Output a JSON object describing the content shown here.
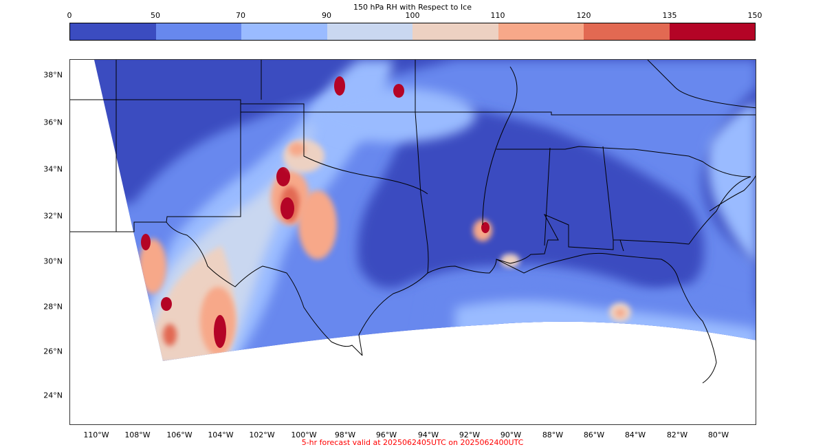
{
  "colorbar": {
    "title": "150 hPa RH with Respect to Ice",
    "ticks": [
      "0",
      "50",
      "70",
      "90",
      "100",
      "110",
      "120",
      "135",
      "150"
    ],
    "colors": [
      "#3b4cc0",
      "#6788ee",
      "#9abbff",
      "#c9d7f0",
      "#edd1c2",
      "#f7a889",
      "#e26952",
      "#b40426"
    ]
  },
  "map": {
    "lat_labels": [
      "38°N",
      "36°N",
      "34°N",
      "32°N",
      "30°N",
      "28°N",
      "26°N",
      "24°N"
    ],
    "lon_labels": [
      "110°W",
      "108°W",
      "106°W",
      "104°W",
      "102°W",
      "100°W",
      "98°W",
      "96°W",
      "94°W",
      "92°W",
      "90°W",
      "88°W",
      "86°W",
      "84°W",
      "82°W",
      "80°W"
    ],
    "ocean_color": "#ffffff",
    "border_color": "#000000"
  },
  "footer": {
    "text": "5-hr forecast valid at 2025062405UTC on 2025062400UTC",
    "color": "#ff0000"
  }
}
